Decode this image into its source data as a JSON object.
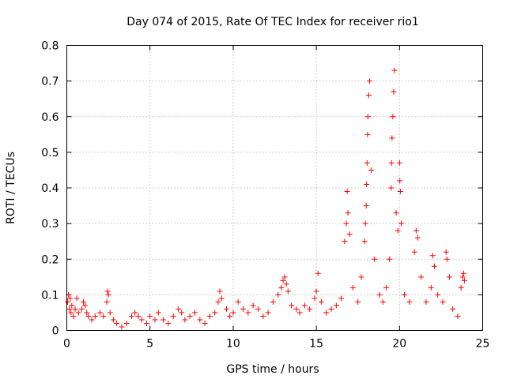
{
  "chart_data": {
    "type": "scatter",
    "title": "Day 074 of 2015, Rate Of TEC Index for receiver rio1",
    "xlabel": "GPS time / hours",
    "ylabel": "ROTI / TECUs",
    "xlim": [
      0,
      25
    ],
    "ylim": [
      0,
      0.8
    ],
    "xticks": [
      0,
      5,
      10,
      15,
      20,
      25
    ],
    "yticks": [
      0,
      0.1,
      0.2,
      0.3,
      0.4,
      0.5,
      0.6,
      0.7,
      0.8
    ],
    "xtick_labels": [
      "0",
      "5",
      "10",
      "15",
      "20",
      "25"
    ],
    "ytick_labels": [
      "0",
      "0.1",
      "0.2",
      "0.3",
      "0.4",
      "0.5",
      "0.6",
      "0.7",
      "0.8"
    ],
    "grid": true,
    "marker": "+",
    "marker_color": "#ff0000",
    "series": [
      {
        "name": "ROTI",
        "x": [
          0.05,
          0.1,
          0.15,
          0.2,
          0.25,
          0.3,
          0.4,
          0.5,
          0.6,
          0.7,
          0.9,
          1.0,
          1.1,
          1.2,
          1.3,
          1.5,
          1.7,
          2.0,
          2.2,
          2.4,
          2.45,
          2.5,
          2.6,
          2.8,
          3.0,
          3.3,
          3.6,
          3.9,
          4.1,
          4.3,
          4.5,
          4.8,
          5.0,
          5.3,
          5.5,
          5.8,
          6.1,
          6.4,
          6.7,
          6.9,
          7.1,
          7.4,
          7.7,
          8.0,
          8.3,
          8.6,
          8.9,
          9.1,
          9.2,
          9.3,
          9.6,
          9.8,
          10.0,
          10.3,
          10.6,
          10.9,
          11.2,
          11.5,
          11.8,
          12.1,
          12.4,
          12.7,
          12.9,
          13.0,
          13.1,
          13.2,
          13.3,
          13.5,
          13.8,
          14.0,
          14.3,
          14.6,
          14.9,
          15.0,
          15.1,
          15.3,
          15.6,
          15.9,
          16.2,
          16.5,
          16.7,
          16.8,
          16.85,
          16.9,
          17.0,
          17.2,
          17.5,
          17.7,
          17.9,
          17.95,
          18.0,
          18.02,
          18.05,
          18.08,
          18.1,
          18.15,
          18.2,
          18.3,
          18.5,
          18.8,
          19.0,
          19.2,
          19.4,
          19.5,
          19.52,
          19.55,
          19.6,
          19.65,
          19.7,
          19.8,
          19.9,
          20.0,
          20.02,
          20.05,
          20.1,
          20.3,
          20.6,
          20.9,
          21.0,
          21.1,
          21.3,
          21.6,
          21.9,
          22.0,
          22.1,
          22.3,
          22.6,
          22.8,
          22.85,
          23.0,
          23.2,
          23.5,
          23.7,
          23.8,
          23.85,
          23.9
        ],
        "y": [
          0.08,
          0.1,
          0.06,
          0.09,
          0.05,
          0.07,
          0.04,
          0.06,
          0.09,
          0.05,
          0.06,
          0.08,
          0.07,
          0.05,
          0.04,
          0.03,
          0.04,
          0.05,
          0.04,
          0.08,
          0.11,
          0.1,
          0.05,
          0.03,
          0.02,
          0.01,
          0.02,
          0.04,
          0.05,
          0.04,
          0.03,
          0.02,
          0.04,
          0.03,
          0.05,
          0.03,
          0.02,
          0.04,
          0.06,
          0.05,
          0.03,
          0.04,
          0.05,
          0.03,
          0.02,
          0.04,
          0.05,
          0.08,
          0.11,
          0.09,
          0.06,
          0.04,
          0.05,
          0.08,
          0.06,
          0.05,
          0.07,
          0.06,
          0.04,
          0.05,
          0.08,
          0.1,
          0.12,
          0.14,
          0.15,
          0.13,
          0.11,
          0.07,
          0.06,
          0.05,
          0.07,
          0.06,
          0.09,
          0.11,
          0.16,
          0.08,
          0.05,
          0.06,
          0.07,
          0.09,
          0.25,
          0.3,
          0.39,
          0.33,
          0.27,
          0.12,
          0.08,
          0.15,
          0.25,
          0.3,
          0.35,
          0.41,
          0.47,
          0.55,
          0.6,
          0.66,
          0.7,
          0.45,
          0.2,
          0.1,
          0.08,
          0.12,
          0.2,
          0.4,
          0.47,
          0.54,
          0.6,
          0.67,
          0.73,
          0.33,
          0.28,
          0.47,
          0.42,
          0.39,
          0.3,
          0.1,
          0.08,
          0.22,
          0.28,
          0.26,
          0.15,
          0.08,
          0.12,
          0.21,
          0.18,
          0.1,
          0.08,
          0.22,
          0.2,
          0.15,
          0.06,
          0.04,
          0.12,
          0.15,
          0.16,
          0.14
        ]
      }
    ]
  }
}
